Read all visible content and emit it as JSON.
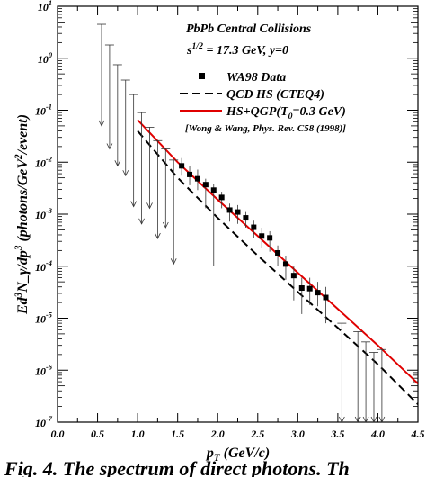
{
  "chart_data": {
    "type": "scatter",
    "title": "PbPb Central Collisions",
    "subtitle": "s^{1/2} = 17.3 GeV,  y=0",
    "xlabel": "p_T (GeV/c)",
    "ylabel": "Ed^3N_γ/dp^3 (photons/GeV^2/event)",
    "xlim": [
      0,
      4.5
    ],
    "ylim": [
      1e-07,
      10
    ],
    "yscale": "log",
    "x_ticks": [
      0.0,
      0.5,
      1.0,
      1.5,
      2.0,
      2.5,
      3.0,
      3.5,
      4.0,
      4.5
    ],
    "x_tick_labels": [
      "0.0",
      "0.5",
      "1.0",
      "1.5",
      "2.0",
      "2.5",
      "3.0",
      "3.5",
      "4.0",
      "4.5"
    ],
    "y_tick_labels": [
      "10^{-7}",
      "10^{-6}",
      "10^{-5}",
      "10^{-4}",
      "10^{-3}",
      "10^{-2}",
      "10^{-1}",
      "10^{0}",
      "10^{1}"
    ],
    "legend_position": "top-right",
    "reference": "[Wong & Wang, Phys. Rev. C58 (1998)]",
    "series": [
      {
        "name": "WA98 Data",
        "kind": "points",
        "color": "#000000",
        "points": [
          {
            "x": 1.55,
            "y": 0.0085
          },
          {
            "x": 1.65,
            "y": 0.0058
          },
          {
            "x": 1.75,
            "y": 0.0048
          },
          {
            "x": 1.85,
            "y": 0.0037
          },
          {
            "x": 1.95,
            "y": 0.0029
          },
          {
            "x": 2.05,
            "y": 0.0021
          },
          {
            "x": 2.15,
            "y": 0.0012
          },
          {
            "x": 2.25,
            "y": 0.0011
          },
          {
            "x": 2.35,
            "y": 0.00085
          },
          {
            "x": 2.45,
            "y": 0.00056
          },
          {
            "x": 2.55,
            "y": 0.00038
          },
          {
            "x": 2.65,
            "y": 0.00035
          },
          {
            "x": 2.75,
            "y": 0.00018
          },
          {
            "x": 2.85,
            "y": 0.00011
          },
          {
            "x": 2.95,
            "y": 6.6e-05
          },
          {
            "x": 3.05,
            "y": 3.8e-05
          },
          {
            "x": 3.15,
            "y": 3.7e-05
          },
          {
            "x": 3.25,
            "y": 3.1e-05
          },
          {
            "x": 3.35,
            "y": 2.5e-05
          }
        ],
        "errors": [
          {
            "x": 1.55,
            "low": 0.0055,
            "high": 0.012
          },
          {
            "x": 1.65,
            "low": 0.0036,
            "high": 0.0085
          },
          {
            "x": 1.75,
            "low": 0.0029,
            "high": 0.0072
          },
          {
            "x": 1.85,
            "low": 0.0013,
            "high": 0.0048
          },
          {
            "x": 1.95,
            "low": 0.0001,
            "high": 0.0038
          },
          {
            "x": 2.05,
            "low": 0.0013,
            "high": 0.0027
          },
          {
            "x": 2.15,
            "low": 0.00072,
            "high": 0.0016
          },
          {
            "x": 2.25,
            "low": 0.00065,
            "high": 0.0015
          },
          {
            "x": 2.35,
            "low": 0.00055,
            "high": 0.0011
          },
          {
            "x": 2.45,
            "low": 0.00035,
            "high": 0.00075
          },
          {
            "x": 2.55,
            "low": 0.00022,
            "high": 0.00055
          },
          {
            "x": 2.65,
            "low": 0.00019,
            "high": 0.00047
          },
          {
            "x": 2.75,
            "low": 0.0001,
            "high": 0.00025
          },
          {
            "x": 2.85,
            "low": 5.5e-05,
            "high": 0.00016
          },
          {
            "x": 2.95,
            "low": 2.2e-05,
            "high": 0.0001
          },
          {
            "x": 3.05,
            "low": 1.2e-05,
            "high": 6e-05
          },
          {
            "x": 3.15,
            "low": 1.8e-05,
            "high": 6e-05
          },
          {
            "x": 3.25,
            "low": 1.7e-05,
            "high": 5e-05
          },
          {
            "x": 3.35,
            "low": 8e-06,
            "high": 4e-05
          }
        ],
        "upper_limits": [
          {
            "x": 0.55,
            "high": 4.5,
            "low": 0.05
          },
          {
            "x": 0.65,
            "high": 1.8,
            "low": 0.018
          },
          {
            "x": 0.75,
            "high": 0.75,
            "low": 0.0085
          },
          {
            "x": 0.85,
            "high": 0.38,
            "low": 0.0055
          },
          {
            "x": 0.95,
            "high": 0.2,
            "low": 0.0014
          },
          {
            "x": 1.05,
            "high": 0.09,
            "low": 0.00065
          },
          {
            "x": 1.15,
            "high": 0.047,
            "low": 0.0013
          },
          {
            "x": 1.25,
            "high": 0.026,
            "low": 0.00034
          },
          {
            "x": 1.35,
            "high": 0.018,
            "low": 0.00055
          },
          {
            "x": 1.45,
            "high": 0.011,
            "low": 0.00011
          },
          {
            "x": 3.55,
            "high": 8e-06,
            "low": 1e-07
          },
          {
            "x": 3.75,
            "high": 5.5e-06,
            "low": 1e-07
          },
          {
            "x": 3.85,
            "high": 3.5e-06,
            "low": 1e-07
          },
          {
            "x": 3.95,
            "high": 2.2e-06,
            "low": 1e-07
          },
          {
            "x": 4.05,
            "high": 2.5e-06,
            "low": 1e-07
          }
        ]
      },
      {
        "name": "QCD HS (CTEQ4)",
        "kind": "line",
        "dash": "dashed",
        "color": "#000000",
        "x": [
          1.0,
          1.5,
          2.0,
          2.5,
          3.0,
          3.5,
          4.0,
          4.5
        ],
        "y": [
          0.04,
          0.005,
          0.00085,
          0.00016,
          3.2e-05,
          6.5e-06,
          1.3e-06,
          2.2e-07
        ]
      },
      {
        "name": "HS+QGP(T_0=0.3 GeV)",
        "kind": "line",
        "dash": "solid",
        "color": "#e00000",
        "x": [
          1.0,
          1.5,
          2.0,
          2.5,
          3.0,
          3.5,
          4.0,
          4.5
        ],
        "y": [
          0.065,
          0.01,
          0.0019,
          0.00038,
          7.5e-05,
          1.5e-05,
          3e-06,
          5.5e-07
        ]
      }
    ]
  },
  "caption_partial": "Fig.  4.  The spectrum of direct photons. Th"
}
